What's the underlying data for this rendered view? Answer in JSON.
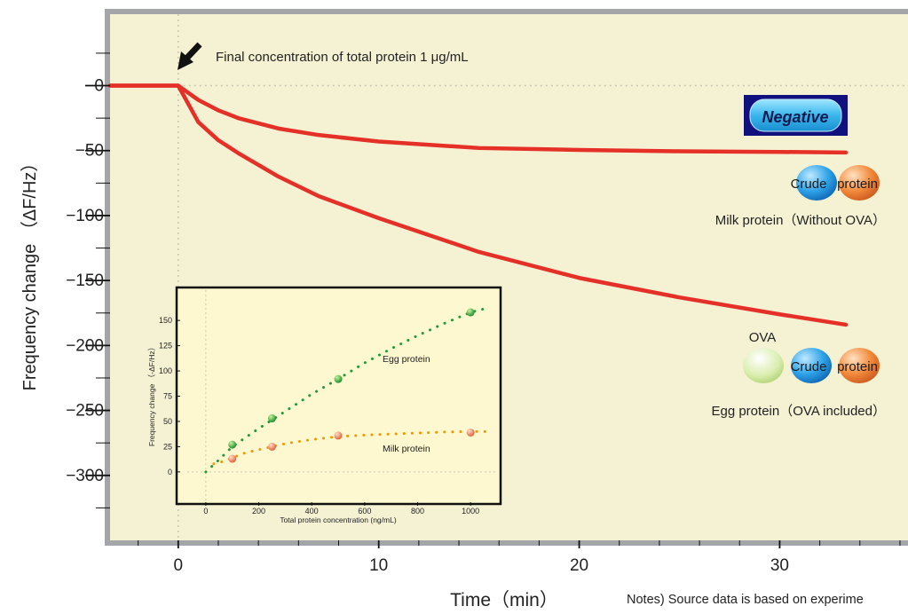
{
  "chart_data": [
    {
      "type": "line",
      "xlabel": "Time（min）",
      "ylabel": "Frequency change （ΔF/Hz）",
      "xlim": [
        -3.4,
        36.4
      ],
      "ylim": [
        -350,
        55
      ],
      "x_ticks": [
        0,
        10,
        20,
        30
      ],
      "y_ticks": [
        0,
        -50,
        -100,
        -150,
        -200,
        -250,
        -300
      ],
      "tick_labels": {
        "x": [
          "0",
          "10",
          "20",
          "30"
        ],
        "y": [
          "0",
          "−50",
          "−100",
          "−150",
          "−200",
          "−250",
          "−300"
        ]
      },
      "series": [
        {
          "name": "Milk protein",
          "x": [
            -3.4,
            0,
            1,
            2,
            3,
            5,
            7,
            10,
            15,
            20,
            25,
            30,
            33.3
          ],
          "y": [
            0,
            0,
            -11,
            -19,
            -25,
            -33,
            -38,
            -43,
            -48,
            -49.5,
            -50.5,
            -51,
            -51.5
          ]
        },
        {
          "name": "Egg protein",
          "x": [
            -3.4,
            0,
            1,
            2,
            3,
            5,
            7,
            10,
            15,
            20,
            25,
            30,
            33.3
          ],
          "y": [
            0,
            0,
            -28,
            -42,
            -52,
            -70,
            -85,
            -102,
            -128,
            -148,
            -163,
            -176,
            -184
          ]
        }
      ],
      "annotations": {
        "arrow_text": "Final concentration of total protein 1 μg/mL",
        "badge_text": "Negative",
        "crude_text": "Crude",
        "protein_text": "protein",
        "crude2_text": "Crude",
        "protein2_text": "protein",
        "ova_text": "OVA",
        "milk_caption": "Milk protein（Without OVA）",
        "egg_caption": "Egg protein（OVA included）",
        "notes": "Notes) Source data is based on experime"
      },
      "colors": {
        "line": "#e53027",
        "plot_bg": "#f5f2d4",
        "frame": "#a3a5a8"
      }
    },
    {
      "type": "scatter",
      "xlabel": "Total protein concentration (ng/mL)",
      "ylabel": "Frequency change （-ΔF/Hz）",
      "xlim": [
        -70,
        1100
      ],
      "ylim": [
        -30,
        180
      ],
      "x_ticks": [
        0,
        200,
        400,
        600,
        800,
        1000
      ],
      "y_ticks": [
        0,
        25,
        50,
        75,
        100,
        125,
        150
      ],
      "series": [
        {
          "name": "Egg protein",
          "x": [
            100,
            250,
            500,
            1000
          ],
          "y": [
            27,
            53,
            92,
            158
          ]
        },
        {
          "name": "Milk protein",
          "x": [
            100,
            250,
            500,
            1000
          ],
          "y": [
            13,
            25,
            36,
            39
          ]
        }
      ],
      "trend": {
        "egg": {
          "x": [
            0,
            50,
            100,
            200,
            300,
            400,
            500,
            600,
            700,
            800,
            900,
            1000,
            1060
          ],
          "y": [
            0,
            12,
            25,
            43,
            60,
            77,
            92,
            108,
            122,
            135,
            147,
            158,
            162
          ]
        },
        "milk": {
          "x": [
            30,
            60,
            100,
            150,
            200,
            300,
            400,
            500,
            600,
            700,
            800,
            900,
            1000,
            1060
          ],
          "y": [
            8,
            10,
            14,
            19,
            22,
            28,
            32,
            35,
            36.5,
            37.5,
            38.5,
            39.5,
            40,
            40
          ]
        }
      },
      "colors": {
        "egg": "#1f9a3a",
        "milk": "#f39800",
        "bg": "#fdf8cf"
      }
    }
  ]
}
